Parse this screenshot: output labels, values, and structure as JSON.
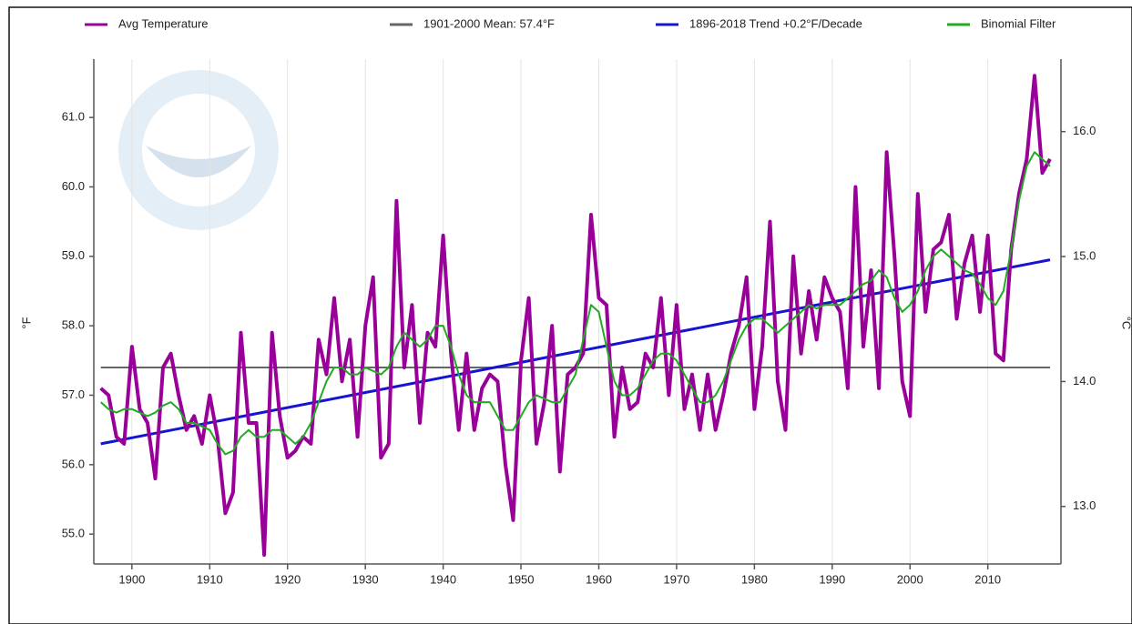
{
  "chart_data": {
    "type": "line",
    "x": [
      1896,
      1897,
      1898,
      1899,
      1900,
      1901,
      1902,
      1903,
      1904,
      1905,
      1906,
      1907,
      1908,
      1909,
      1910,
      1911,
      1912,
      1913,
      1914,
      1915,
      1916,
      1917,
      1918,
      1919,
      1920,
      1921,
      1922,
      1923,
      1924,
      1925,
      1926,
      1927,
      1928,
      1929,
      1930,
      1931,
      1932,
      1933,
      1934,
      1935,
      1936,
      1937,
      1938,
      1939,
      1940,
      1941,
      1942,
      1943,
      1944,
      1945,
      1946,
      1947,
      1948,
      1949,
      1950,
      1951,
      1952,
      1953,
      1954,
      1955,
      1956,
      1957,
      1958,
      1959,
      1960,
      1961,
      1962,
      1963,
      1964,
      1965,
      1966,
      1967,
      1968,
      1969,
      1970,
      1971,
      1972,
      1973,
      1974,
      1975,
      1976,
      1977,
      1978,
      1979,
      1980,
      1981,
      1982,
      1983,
      1984,
      1985,
      1986,
      1987,
      1988,
      1989,
      1990,
      1991,
      1992,
      1993,
      1994,
      1995,
      1996,
      1997,
      1998,
      1999,
      2000,
      2001,
      2002,
      2003,
      2004,
      2005,
      2006,
      2007,
      2008,
      2009,
      2010,
      2011,
      2012,
      2013,
      2014,
      2015,
      2016,
      2017,
      2018
    ],
    "series": [
      {
        "name": "Avg Temperature",
        "color": "#990099",
        "width": 4,
        "values": [
          57.1,
          57.0,
          56.4,
          56.3,
          57.7,
          56.8,
          56.6,
          55.8,
          57.4,
          57.6,
          57.0,
          56.5,
          56.7,
          56.3,
          57.0,
          56.4,
          55.3,
          55.6,
          57.9,
          56.6,
          56.6,
          54.7,
          57.9,
          56.7,
          56.1,
          56.2,
          56.4,
          56.3,
          57.8,
          57.3,
          58.4,
          57.2,
          57.8,
          56.4,
          58.0,
          58.7,
          56.1,
          56.3,
          59.8,
          57.4,
          58.3,
          56.6,
          57.9,
          57.7,
          59.3,
          57.6,
          56.5,
          57.6,
          56.5,
          57.1,
          57.3,
          57.2,
          56.0,
          55.2,
          57.5,
          58.4,
          56.3,
          56.9,
          58.0,
          55.9,
          57.3,
          57.4,
          57.6,
          59.6,
          58.4,
          58.3,
          56.4,
          57.4,
          56.8,
          56.9,
          57.6,
          57.4,
          58.4,
          57.0,
          58.3,
          56.8,
          57.3,
          56.5,
          57.3,
          56.5,
          57.0,
          57.6,
          58.0,
          58.7,
          56.8,
          57.7,
          59.5,
          57.2,
          56.5,
          59.0,
          57.6,
          58.5,
          57.8,
          58.7,
          58.4,
          58.2,
          57.1,
          60.0,
          57.7,
          58.8,
          57.1,
          60.5,
          59.0,
          57.2,
          56.7,
          59.9,
          58.2,
          59.1,
          59.2,
          59.6,
          58.1,
          58.9,
          59.3,
          58.2,
          59.3,
          57.6,
          57.5,
          59.1,
          59.9,
          60.4,
          61.6,
          60.2,
          60.4
        ]
      },
      {
        "name": "1901-2000 Mean: 57.4°F",
        "color": "#666666",
        "width": 2,
        "x": [
          1896,
          2018
        ],
        "values": [
          57.4,
          57.4
        ]
      },
      {
        "name": "1896-2018 Trend +0.2°F/Decade",
        "color": "#1414d2",
        "width": 3,
        "x": [
          1896,
          2018
        ],
        "values": [
          56.3,
          58.95
        ]
      },
      {
        "name": "Binomial Filter",
        "color": "#22aa22",
        "width": 2,
        "values": [
          56.9,
          56.8,
          56.75,
          56.8,
          56.8,
          56.75,
          56.7,
          56.75,
          56.85,
          56.9,
          56.8,
          56.6,
          56.6,
          56.55,
          56.5,
          56.3,
          56.15,
          56.2,
          56.4,
          56.5,
          56.4,
          56.4,
          56.5,
          56.5,
          56.4,
          56.3,
          56.4,
          56.6,
          56.9,
          57.2,
          57.4,
          57.4,
          57.3,
          57.3,
          57.4,
          57.35,
          57.3,
          57.4,
          57.7,
          57.9,
          57.8,
          57.7,
          57.8,
          58.0,
          58.0,
          57.7,
          57.3,
          57.0,
          56.9,
          56.9,
          56.9,
          56.7,
          56.5,
          56.5,
          56.7,
          56.9,
          57.0,
          56.95,
          56.9,
          56.9,
          57.1,
          57.3,
          57.8,
          58.3,
          58.2,
          57.7,
          57.2,
          57.0,
          57.0,
          57.1,
          57.3,
          57.5,
          57.6,
          57.6,
          57.5,
          57.3,
          57.1,
          56.9,
          56.9,
          57.0,
          57.2,
          57.5,
          57.8,
          58.0,
          58.1,
          58.1,
          58.0,
          57.9,
          58.0,
          58.1,
          58.2,
          58.3,
          58.25,
          58.3,
          58.3,
          58.3,
          58.4,
          58.5,
          58.6,
          58.65,
          58.8,
          58.7,
          58.4,
          58.2,
          58.3,
          58.5,
          58.8,
          59.0,
          59.1,
          59.0,
          58.9,
          58.8,
          58.75,
          58.6,
          58.4,
          58.3,
          58.5,
          59.1,
          59.8,
          60.3,
          60.5,
          60.4,
          60.3
        ]
      }
    ],
    "y_label": "°F",
    "y2_label": "°C",
    "xlim": [
      1895.1,
      2019.4
    ],
    "xticks": [
      1900,
      1910,
      1920,
      1930,
      1940,
      1950,
      1960,
      1970,
      1980,
      1990,
      2000,
      2010
    ],
    "ylim": [
      54.57,
      61.84
    ],
    "yticks": [
      {
        "value": 55,
        "label": "55.0"
      },
      {
        "value": 56,
        "label": "56.0"
      },
      {
        "value": 57,
        "label": "57.0"
      },
      {
        "value": 58,
        "label": "58.0"
      },
      {
        "value": 59,
        "label": "59.0"
      },
      {
        "value": 60,
        "label": "60.0"
      },
      {
        "value": 61,
        "label": "61.0"
      }
    ],
    "y2lim": [
      12.54,
      16.58
    ],
    "y2ticks": [
      {
        "value": 13,
        "label": "13.0"
      },
      {
        "value": 14,
        "label": "14.0"
      },
      {
        "value": 15,
        "label": "15.0"
      },
      {
        "value": 16,
        "label": "16.0"
      }
    ],
    "grid": true,
    "legend": "top"
  }
}
